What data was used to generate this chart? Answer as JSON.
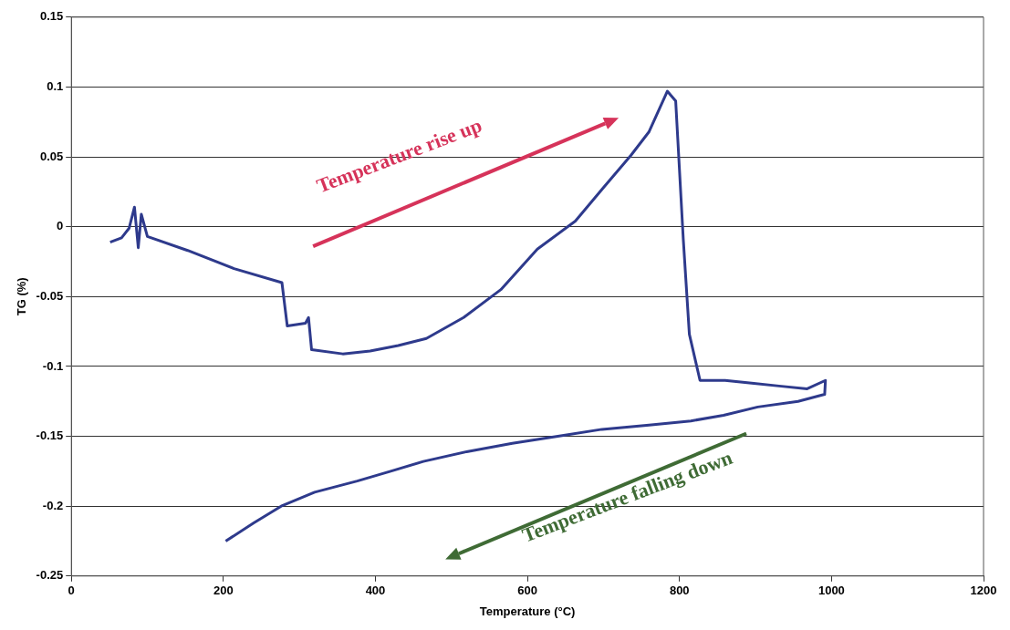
{
  "chart_data": {
    "type": "line",
    "xlabel": "Temperature (°C)",
    "ylabel": "TG (%)",
    "xlim": [
      0,
      1200
    ],
    "xticks": [
      0,
      200,
      400,
      600,
      800,
      1000,
      1200
    ],
    "ylim": [
      -0.25,
      0.15
    ],
    "yticks": [
      -0.25,
      -0.2,
      -0.15,
      -0.1,
      -0.05,
      0,
      0.05,
      0.1,
      0.15
    ],
    "grid": "y",
    "legend": false,
    "marker": "none",
    "line_style": "solid",
    "annotations": [
      "Temperature rise up",
      "Temperature falling down"
    ],
    "series": [
      {
        "color": "#2e3a8c",
        "x": [
          51,
          66,
          76,
          83,
          88,
          92,
          100,
          153,
          214,
          277,
          284,
          308,
          312,
          316,
          357,
          393,
          430,
          467,
          516,
          565,
          613,
          663,
          700,
          736,
          760,
          784,
          795,
          805,
          813,
          827,
          860,
          895,
          931,
          968,
          992,
          991,
          956,
          903,
          858,
          815,
          760,
          698,
          640,
          580,
          520,
          463,
          420,
          376,
          320,
          276,
          240,
          203
        ],
        "values": [
          -0.011,
          -0.008,
          -0.001,
          0.014,
          -0.015,
          0.009,
          -0.007,
          -0.017,
          -0.03,
          -0.04,
          -0.071,
          -0.069,
          -0.065,
          -0.088,
          -0.091,
          -0.089,
          -0.085,
          -0.08,
          -0.065,
          -0.045,
          -0.016,
          0.004,
          0.028,
          0.051,
          0.068,
          0.097,
          0.09,
          -0.009,
          -0.077,
          -0.11,
          -0.11,
          -0.112,
          -0.114,
          -0.116,
          -0.11,
          -0.12,
          -0.125,
          -0.129,
          -0.135,
          -0.139,
          -0.142,
          -0.145,
          -0.15,
          -0.155,
          -0.161,
          -0.168,
          -0.175,
          -0.182,
          -0.19,
          -0.2,
          -0.212,
          -0.225
        ]
      }
    ]
  }
}
